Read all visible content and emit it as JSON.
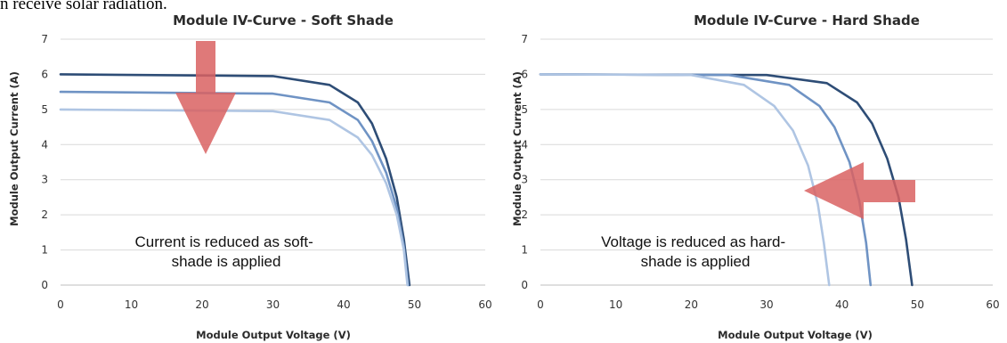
{
  "header_text": "n receive solar radiation.",
  "colors": {
    "dark": "#2e4d76",
    "mid": "#6f93c4",
    "light": "#afc5e3",
    "arrow": "#d96262",
    "grid": "#d9d9d9"
  },
  "chart_data": [
    {
      "type": "line",
      "title": "Module IV-Curve - Soft Shade",
      "xlabel": "Module Output Voltage (V)",
      "ylabel": "Module Output Current (A)",
      "xlim": [
        0,
        60
      ],
      "ylim": [
        0,
        7
      ],
      "xticks": [
        0,
        10,
        20,
        30,
        40,
        50,
        60
      ],
      "yticks": [
        0,
        1,
        2,
        3,
        4,
        5,
        6,
        7
      ],
      "grid": "horizontal",
      "annotation": [
        "Current is reduced as soft-",
        "shade is applied"
      ],
      "series": [
        {
          "color": "dark",
          "x": [
            0,
            30,
            38,
            42,
            44,
            46,
            47.5,
            48.5,
            49.3
          ],
          "y": [
            6.0,
            5.95,
            5.7,
            5.2,
            4.6,
            3.6,
            2.5,
            1.3,
            0
          ]
        },
        {
          "color": "mid",
          "x": [
            0,
            30,
            38,
            42,
            44,
            46,
            47.5,
            48.5,
            49.1
          ],
          "y": [
            5.5,
            5.45,
            5.2,
            4.7,
            4.1,
            3.2,
            2.2,
            1.1,
            0
          ]
        },
        {
          "color": "light",
          "x": [
            0,
            30,
            38,
            42,
            44,
            46,
            47.5,
            48.5,
            49.0
          ],
          "y": [
            5.0,
            4.95,
            4.7,
            4.2,
            3.7,
            2.9,
            2.0,
            1.0,
            0
          ]
        }
      ]
    },
    {
      "type": "line",
      "title": "Module IV-Curve - Hard Shade",
      "xlabel": "Module Output Voltage (V)",
      "ylabel": "Module Output Current (A)",
      "xlim": [
        0,
        60
      ],
      "ylim": [
        0,
        7
      ],
      "xticks": [
        0,
        10,
        20,
        30,
        40,
        50,
        60
      ],
      "yticks": [
        0,
        1,
        2,
        3,
        4,
        5,
        6,
        7
      ],
      "grid": "horizontal",
      "annotation": [
        "Voltage is reduced as hard-",
        "shade is applied"
      ],
      "series": [
        {
          "color": "dark",
          "x": [
            0,
            30,
            38,
            42,
            44,
            46,
            47.5,
            48.5,
            49.3
          ],
          "y": [
            6.0,
            5.98,
            5.75,
            5.2,
            4.6,
            3.6,
            2.5,
            1.3,
            0
          ]
        },
        {
          "color": "mid",
          "x": [
            0,
            25,
            33,
            37,
            39,
            41,
            42.3,
            43.2,
            43.8
          ],
          "y": [
            6.0,
            5.98,
            5.7,
            5.1,
            4.5,
            3.5,
            2.4,
            1.2,
            0
          ]
        },
        {
          "color": "light",
          "x": [
            0,
            20,
            27,
            31,
            33.5,
            35.5,
            36.8,
            37.6,
            38.3
          ],
          "y": [
            6.0,
            5.98,
            5.7,
            5.1,
            4.4,
            3.4,
            2.3,
            1.2,
            0
          ]
        }
      ]
    }
  ]
}
